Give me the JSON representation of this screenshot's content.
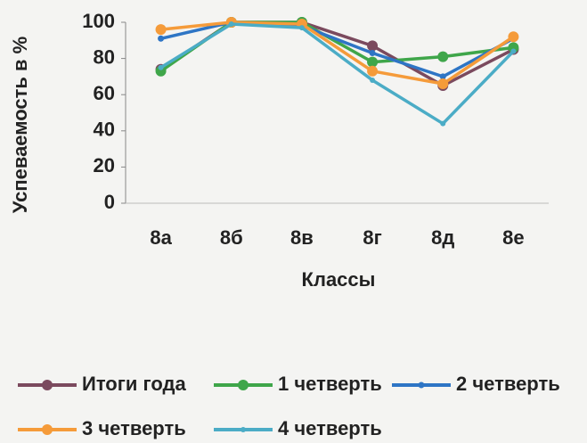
{
  "chart_data": {
    "type": "line",
    "y_label": "Успеваемость в %",
    "x_label": "Классы",
    "categories": [
      "8а",
      "8б",
      "8в",
      "8г",
      "8д",
      "8е"
    ],
    "series": [
      {
        "name": "Итоги года",
        "color": "#7b4a5e",
        "values": [
          74,
          100,
          100,
          87,
          65,
          85
        ]
      },
      {
        "name": "1 четверть",
        "color": "#3fa64a",
        "values": [
          73,
          100,
          100,
          78,
          81,
          86
        ]
      },
      {
        "name": "2 четверть",
        "color": "#2e75c5",
        "values": [
          91,
          100,
          98,
          83,
          70,
          91
        ]
      },
      {
        "name": "3 четверть",
        "color": "#f59b3a",
        "values": [
          96,
          100,
          99,
          73,
          66,
          92
        ]
      },
      {
        "name": "4 четверть",
        "color": "#4bacc6",
        "values": [
          75,
          99,
          97,
          68,
          44,
          84
        ]
      }
    ],
    "ylim": [
      0,
      100
    ],
    "yticks": [
      0,
      20,
      40,
      60,
      80,
      100
    ]
  }
}
